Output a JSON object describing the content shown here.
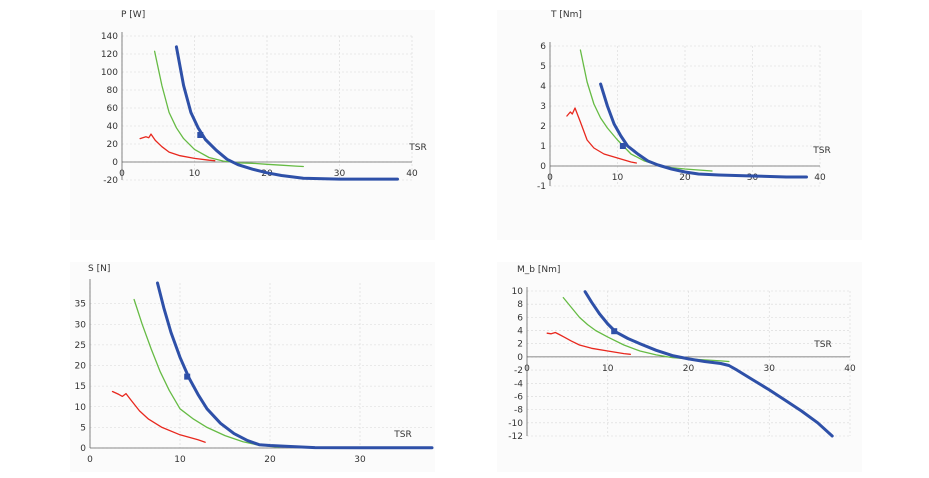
{
  "chart_data": [
    {
      "type": "line",
      "ylabel": "P [W]",
      "xlabel": "TSR",
      "xlim": [
        0,
        40
      ],
      "ylim": [
        -20,
        140
      ],
      "xticks": [
        0,
        10,
        20,
        30,
        40
      ],
      "yticks": [
        -20,
        0,
        20,
        40,
        60,
        80,
        100,
        120,
        140
      ],
      "series": [
        {
          "color": "#e8281e",
          "width": 1.3,
          "points": [
            [
              2.5,
              26
            ],
            [
              3.3,
              28
            ],
            [
              3.7,
              27
            ],
            [
              4.0,
              31
            ],
            [
              4.6,
              24
            ],
            [
              5.5,
              17
            ],
            [
              6.5,
              11
            ],
            [
              8,
              7
            ],
            [
              10,
              4
            ],
            [
              12,
              2
            ],
            [
              12.8,
              1.5
            ]
          ]
        },
        {
          "color": "#66bb44",
          "width": 1.3,
          "points": [
            [
              4.5,
              123
            ],
            [
              5.5,
              85
            ],
            [
              6.5,
              55
            ],
            [
              7.5,
              38
            ],
            [
              8.5,
              26
            ],
            [
              10,
              14
            ],
            [
              12,
              5
            ],
            [
              14,
              1
            ],
            [
              16,
              -1
            ],
            [
              18,
              -1.5
            ],
            [
              20,
              -2.5
            ],
            [
              22,
              -3.5
            ],
            [
              24,
              -4.5
            ],
            [
              25,
              -5
            ]
          ]
        },
        {
          "color": "#2e50a8",
          "width": 3,
          "points": [
            [
              7.5,
              128
            ],
            [
              8.5,
              85
            ],
            [
              9.5,
              55
            ],
            [
              10.5,
              38
            ],
            [
              11.5,
              25
            ],
            [
              13,
              13
            ],
            [
              14.5,
              3
            ],
            [
              16,
              -3
            ],
            [
              18,
              -8
            ],
            [
              20,
              -12
            ],
            [
              22,
              -15
            ],
            [
              25,
              -18
            ],
            [
              30,
              -19
            ],
            [
              35,
              -19
            ],
            [
              38,
              -19
            ]
          ]
        }
      ],
      "marker": {
        "x": 10.8,
        "y": 30,
        "color": "#2e50a8"
      }
    },
    {
      "type": "line",
      "ylabel": "T [Nm]",
      "xlabel": "TSR",
      "xlim": [
        0,
        40
      ],
      "ylim": [
        -1,
        6
      ],
      "xticks": [
        0,
        10,
        20,
        30,
        40
      ],
      "yticks": [
        -1,
        0,
        1,
        2,
        3,
        4,
        5,
        6
      ],
      "series": [
        {
          "color": "#e8281e",
          "width": 1.3,
          "points": [
            [
              2.5,
              2.5
            ],
            [
              3.0,
              2.7
            ],
            [
              3.3,
              2.6
            ],
            [
              3.7,
              2.9
            ],
            [
              4.5,
              2.2
            ],
            [
              5.5,
              1.3
            ],
            [
              6.5,
              0.9
            ],
            [
              8,
              0.6
            ],
            [
              10,
              0.4
            ],
            [
              12,
              0.2
            ],
            [
              12.8,
              0.15
            ]
          ]
        },
        {
          "color": "#66bb44",
          "width": 1.3,
          "points": [
            [
              4.5,
              5.8
            ],
            [
              5.5,
              4.2
            ],
            [
              6.5,
              3.1
            ],
            [
              7.5,
              2.4
            ],
            [
              8.5,
              1.9
            ],
            [
              10,
              1.3
            ],
            [
              12,
              0.6
            ],
            [
              14,
              0.25
            ],
            [
              16,
              0.05
            ],
            [
              18,
              -0.08
            ],
            [
              20,
              -0.15
            ],
            [
              22,
              -0.2
            ],
            [
              24,
              -0.25
            ]
          ]
        },
        {
          "color": "#2e50a8",
          "width": 3,
          "points": [
            [
              7.5,
              4.1
            ],
            [
              8.5,
              3.0
            ],
            [
              9.5,
              2.1
            ],
            [
              10.5,
              1.5
            ],
            [
              11.5,
              1.0
            ],
            [
              13,
              0.6
            ],
            [
              14.5,
              0.25
            ],
            [
              16,
              0.05
            ],
            [
              18,
              -0.15
            ],
            [
              20,
              -0.3
            ],
            [
              22,
              -0.4
            ],
            [
              25,
              -0.45
            ],
            [
              30,
              -0.5
            ],
            [
              35,
              -0.55
            ],
            [
              38,
              -0.55
            ]
          ]
        }
      ],
      "marker": {
        "x": 10.8,
        "y": 1.0,
        "color": "#2e50a8"
      }
    },
    {
      "type": "line",
      "ylabel": "S [N]",
      "xlabel": "TSR",
      "xlim": [
        0,
        38
      ],
      "ylim": [
        0,
        40
      ],
      "xticks": [
        0,
        10,
        20,
        30
      ],
      "yticks": [
        0,
        5,
        10,
        15,
        20,
        25,
        30,
        35
      ],
      "series": [
        {
          "color": "#e8281e",
          "width": 1.3,
          "points": [
            [
              2.5,
              13.7
            ],
            [
              3.2,
              13
            ],
            [
              3.6,
              12.5
            ],
            [
              4.0,
              13.2
            ],
            [
              4.6,
              11.5
            ],
            [
              5.5,
              9
            ],
            [
              6.5,
              7
            ],
            [
              8,
              5
            ],
            [
              10,
              3.2
            ],
            [
              12,
              2
            ],
            [
              12.8,
              1.4
            ]
          ]
        },
        {
          "color": "#66bb44",
          "width": 1.3,
          "points": [
            [
              4.9,
              36
            ],
            [
              5.8,
              30
            ],
            [
              6.8,
              24
            ],
            [
              7.8,
              18.5
            ],
            [
              8.8,
              14
            ],
            [
              10,
              9.5
            ],
            [
              11.5,
              7
            ],
            [
              13,
              5
            ],
            [
              15,
              3
            ],
            [
              17,
              1.5
            ],
            [
              18.5,
              0.8
            ],
            [
              20,
              0.4
            ],
            [
              21,
              0.2
            ]
          ]
        },
        {
          "color": "#2e50a8",
          "width": 3,
          "points": [
            [
              7.5,
              40
            ],
            [
              8.2,
              34
            ],
            [
              9.0,
              28
            ],
            [
              10,
              22
            ],
            [
              11,
              17
            ],
            [
              12,
              13
            ],
            [
              13,
              9.5
            ],
            [
              14.5,
              6
            ],
            [
              16,
              3.5
            ],
            [
              17.5,
              1.8
            ],
            [
              18.8,
              0.8
            ],
            [
              20,
              0.6
            ],
            [
              22,
              0.4
            ],
            [
              25,
              0.1
            ],
            [
              30,
              0.05
            ],
            [
              38,
              0.05
            ]
          ]
        }
      ],
      "marker": {
        "x": 10.8,
        "y": 17.3,
        "color": "#2e50a8"
      }
    },
    {
      "type": "line",
      "ylabel": "M_b [Nm]",
      "xlabel": "TSR",
      "xlim": [
        0,
        40
      ],
      "ylim": [
        -12,
        10
      ],
      "xticks": [
        0,
        10,
        20,
        30,
        40
      ],
      "yticks": [
        -12,
        -10,
        -8,
        -6,
        -4,
        -2,
        0,
        2,
        4,
        6,
        8,
        10
      ],
      "series": [
        {
          "color": "#e8281e",
          "width": 1.3,
          "points": [
            [
              2.5,
              3.6
            ],
            [
              3.0,
              3.5
            ],
            [
              3.5,
              3.7
            ],
            [
              4.0,
              3.4
            ],
            [
              4.6,
              3.0
            ],
            [
              5.5,
              2.4
            ],
            [
              6.5,
              1.8
            ],
            [
              8,
              1.3
            ],
            [
              10,
              0.9
            ],
            [
              12,
              0.5
            ],
            [
              12.8,
              0.4
            ]
          ]
        },
        {
          "color": "#66bb44",
          "width": 1.3,
          "points": [
            [
              4.5,
              9.0
            ],
            [
              5.5,
              7.5
            ],
            [
              6.5,
              6.0
            ],
            [
              7.5,
              4.9
            ],
            [
              8.5,
              4.0
            ],
            [
              10,
              3.0
            ],
            [
              12,
              1.8
            ],
            [
              14,
              0.9
            ],
            [
              16,
              0.3
            ],
            [
              18,
              -0.1
            ],
            [
              20,
              -0.3
            ],
            [
              22,
              -0.45
            ],
            [
              24,
              -0.6
            ],
            [
              25,
              -0.7
            ]
          ]
        },
        {
          "color": "#2e50a8",
          "width": 3,
          "points": [
            [
              7.2,
              9.9
            ],
            [
              8,
              8.3
            ],
            [
              9,
              6.5
            ],
            [
              10,
              5.0
            ],
            [
              11,
              3.8
            ],
            [
              12.5,
              2.8
            ],
            [
              14,
              2.0
            ],
            [
              16,
              1.0
            ],
            [
              18,
              0.2
            ],
            [
              20,
              -0.3
            ],
            [
              22,
              -0.7
            ],
            [
              24,
              -1.0
            ],
            [
              25,
              -1.3
            ],
            [
              26,
              -2.0
            ],
            [
              28,
              -3.5
            ],
            [
              30,
              -5
            ],
            [
              32,
              -6.6
            ],
            [
              34,
              -8.2
            ],
            [
              36,
              -10
            ],
            [
              37.8,
              -12
            ]
          ]
        }
      ],
      "marker": {
        "x": 10.8,
        "y": 3.9,
        "color": "#2e50a8"
      }
    }
  ]
}
